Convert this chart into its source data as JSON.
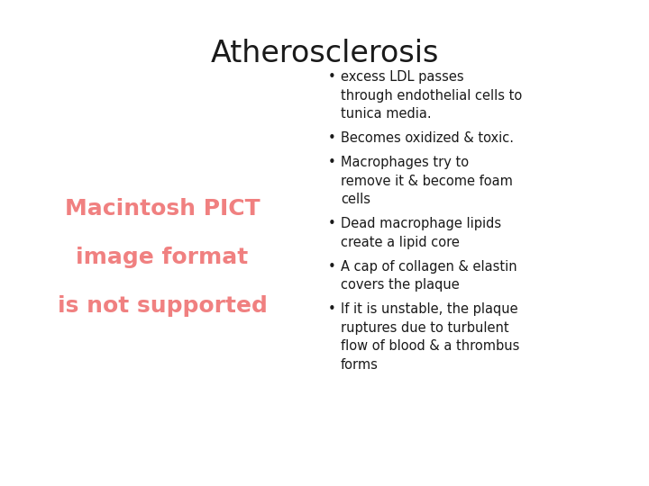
{
  "title": "Atherosclerosis",
  "title_fontsize": 24,
  "title_color": "#1a1a1a",
  "bg_color": "#ffffff",
  "placeholder_text_lines": [
    "Macintosh PICT",
    "image format",
    "is not supported"
  ],
  "placeholder_color": "#f08080",
  "placeholder_fontsize": 18,
  "bullet_points": [
    "excess LDL passes\nthrough endothelial cells to\ntunica media.",
    "Becomes oxidized & toxic.",
    "Macrophages try to\nremove it & become foam\ncells",
    "Dead macrophage lipids\ncreate a lipid core",
    "A cap of collagen & elastin\ncovers the plaque",
    "If it is unstable, the plaque\nruptures due to turbulent\nflow of blood & a thrombus\nforms"
  ],
  "bullet_fontsize": 10.5,
  "bullet_color": "#1a1a1a"
}
